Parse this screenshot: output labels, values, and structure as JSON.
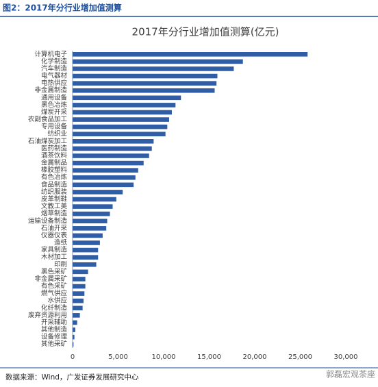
{
  "header": "图2：2017年分行业增加值测算",
  "source": "数据来源：Wind，广发证券发展研究中心",
  "watermark": "郭磊宏观茶座",
  "chart_data": {
    "type": "hbar",
    "title": "2017年分行业增加值测算(亿元)",
    "categories": [
      "计算机电子",
      "化学制造",
      "汽车制造",
      "电气器材",
      "电热供应",
      "非金属制造",
      "通用设备",
      "黑色冶炼",
      "煤炭开采",
      "农副食品加工",
      "专用设备",
      "纺织业",
      "石油煤炭加工",
      "医药制造",
      "酒茶饮料",
      "金属制品",
      "橡胶塑料",
      "有色冶炼",
      "食品制造",
      "纺织服装",
      "皮革制鞋",
      "文教工美",
      "烟草制造",
      "运输设备制造",
      "石油开采",
      "仪器仪表",
      "造纸",
      "家具制造",
      "木材加工",
      "印刷",
      "黑色采矿",
      "非金属采矿",
      "有色采矿",
      "燃气供应",
      "水供应",
      "化纤制造",
      "废弃资源利用",
      "开采辅助",
      "其他制造",
      "设备修理",
      "其他采矿"
    ],
    "values": [
      25800,
      18700,
      17700,
      15900,
      15800,
      15600,
      11900,
      11300,
      10900,
      10600,
      10400,
      10200,
      8900,
      8700,
      8400,
      7800,
      7200,
      6900,
      6700,
      5500,
      4800,
      4400,
      4100,
      3800,
      3700,
      3300,
      3000,
      2800,
      2800,
      2600,
      1700,
      1400,
      1400,
      1300,
      1200,
      1100,
      800,
      500,
      300,
      200,
      100
    ],
    "color": "#2f5ea6",
    "xlim": [
      0,
      30000
    ],
    "xticks": [
      0,
      {
        "value": 5000,
        "label": "5,000"
      },
      {
        "value": 10000,
        "label": "10,000"
      },
      {
        "value": 15000,
        "label": "15,000"
      },
      {
        "value": 20000,
        "label": "20,000"
      },
      {
        "value": 25000,
        "label": "25,000"
      },
      {
        "value": 30000,
        "label": "30,000"
      }
    ],
    "grid": false
  }
}
